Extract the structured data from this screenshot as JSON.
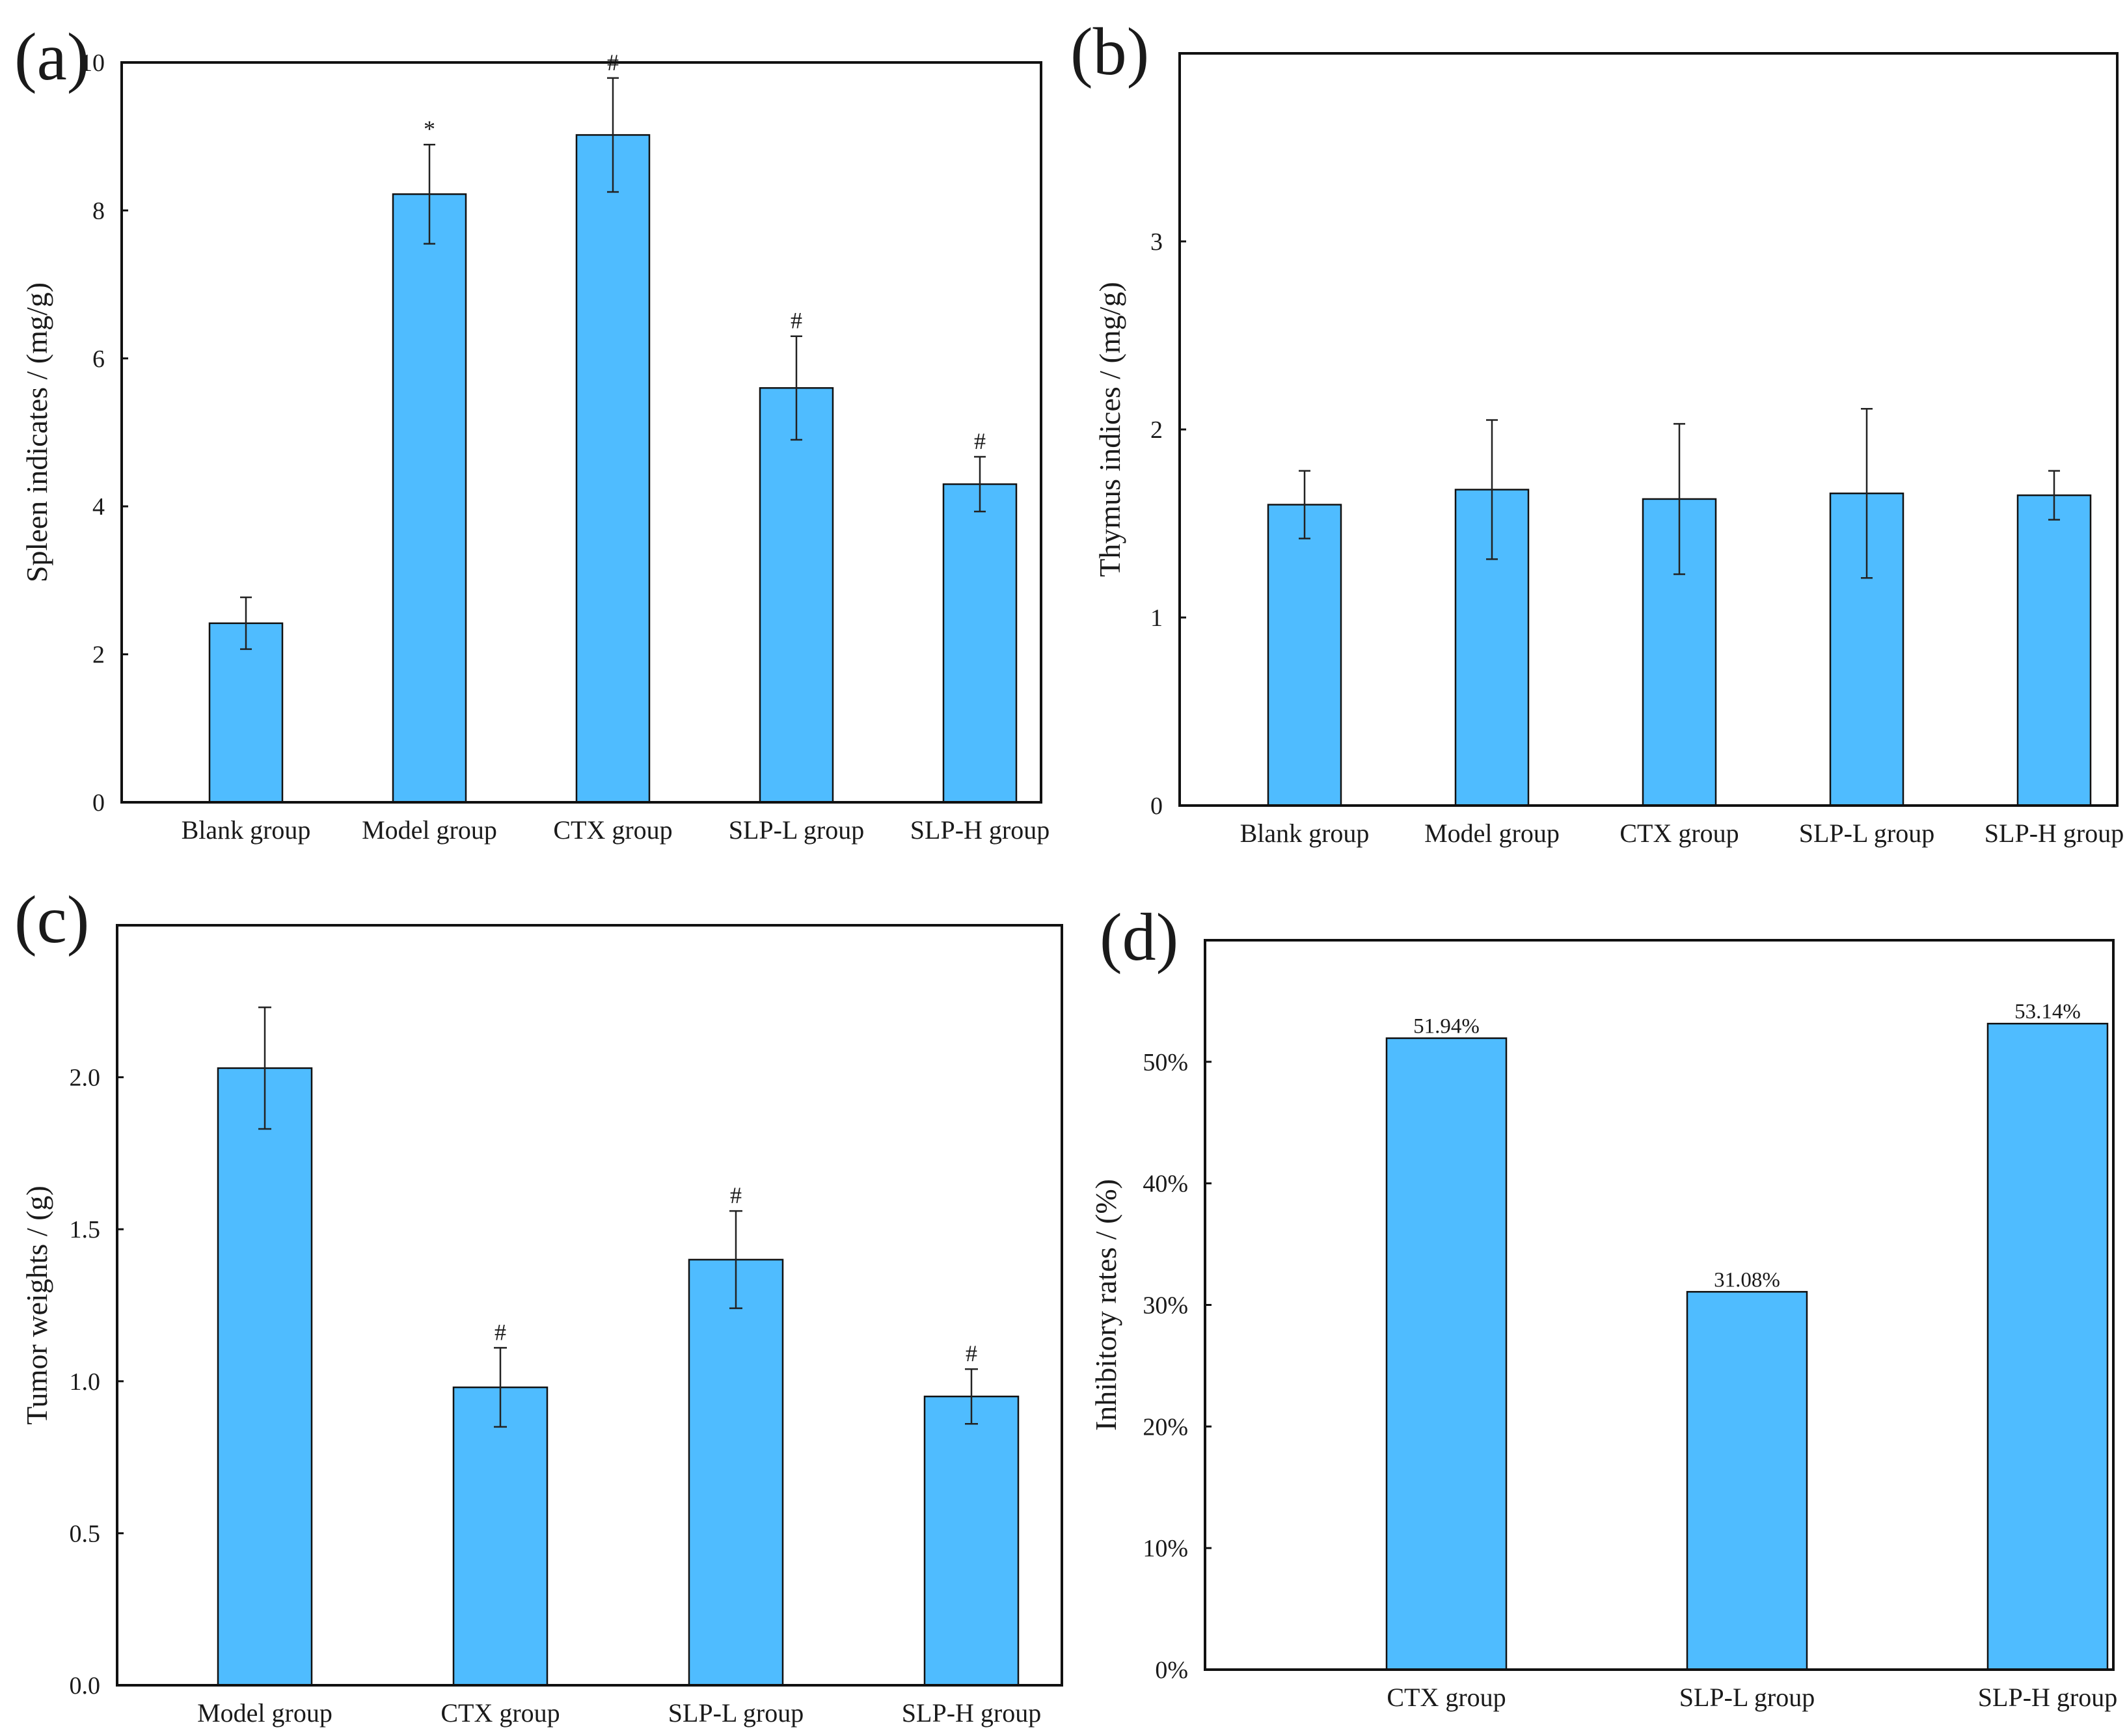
{
  "figure": {
    "accent_color": "#4fbcff"
  },
  "chart_data": [
    {
      "id": "a",
      "panel_label": "(a)",
      "type": "bar",
      "ylabel": "Spleen indicates / (mg/g)",
      "ylim": [
        0,
        10
      ],
      "yticks": [
        0,
        2,
        4,
        6,
        8,
        10
      ],
      "ytick_labels": [
        "0",
        "2",
        "4",
        "6",
        "8",
        "10"
      ],
      "categories": [
        "Blank group",
        "Model group",
        "CTX group",
        "SLP-L group",
        "SLP-H group"
      ],
      "values": [
        2.42,
        8.22,
        9.02,
        5.6,
        4.3
      ],
      "errors": [
        0.35,
        0.67,
        0.77,
        0.7,
        0.37
      ],
      "annotations": [
        "",
        "*",
        "#",
        "#",
        "#"
      ],
      "grid": false
    },
    {
      "id": "b",
      "panel_label": "(b)",
      "type": "bar",
      "ylabel": "Thymus indices / (mg/g)",
      "ylim": [
        0,
        4
      ],
      "yticks": [
        0,
        1,
        2,
        3
      ],
      "ytick_labels": [
        "0",
        "1",
        "2",
        "3"
      ],
      "categories": [
        "Blank group",
        "Model group",
        "CTX group",
        "SLP-L group",
        "SLP-H group"
      ],
      "values": [
        1.6,
        1.68,
        1.63,
        1.66,
        1.65
      ],
      "errors": [
        0.18,
        0.37,
        0.4,
        0.45,
        0.13
      ],
      "annotations": [
        "",
        "",
        "",
        "",
        ""
      ],
      "grid": false
    },
    {
      "id": "c",
      "panel_label": "(c)",
      "type": "bar",
      "ylabel": "Tumor weights / (g)",
      "ylim": [
        0,
        2.5
      ],
      "yticks": [
        0,
        0.5,
        1,
        1.5,
        2
      ],
      "ytick_labels": [
        "0.0",
        "0.5",
        "1.0",
        "1.5",
        "2.0"
      ],
      "categories": [
        "Model group",
        "CTX group",
        "SLP-L group",
        "SLP-H group"
      ],
      "values": [
        2.03,
        0.98,
        1.4,
        0.95
      ],
      "errors": [
        0.2,
        0.13,
        0.16,
        0.09
      ],
      "annotations": [
        "",
        "#",
        "#",
        "#"
      ],
      "grid": false
    },
    {
      "id": "d",
      "panel_label": "(d)",
      "type": "bar",
      "ylabel": "Inhibitory rates / (%)",
      "ylim": [
        0,
        60
      ],
      "yticks": [
        0,
        10,
        20,
        30,
        40,
        50
      ],
      "ytick_labels": [
        "0%",
        "10%",
        "20%",
        "30%",
        "40%",
        "50%"
      ],
      "categories": [
        "CTX group",
        "SLP-L group",
        "SLP-H group"
      ],
      "values": [
        51.94,
        31.08,
        53.14
      ],
      "data_labels": [
        "51.94%",
        "31.08%",
        "53.14%"
      ],
      "grid": false
    }
  ]
}
